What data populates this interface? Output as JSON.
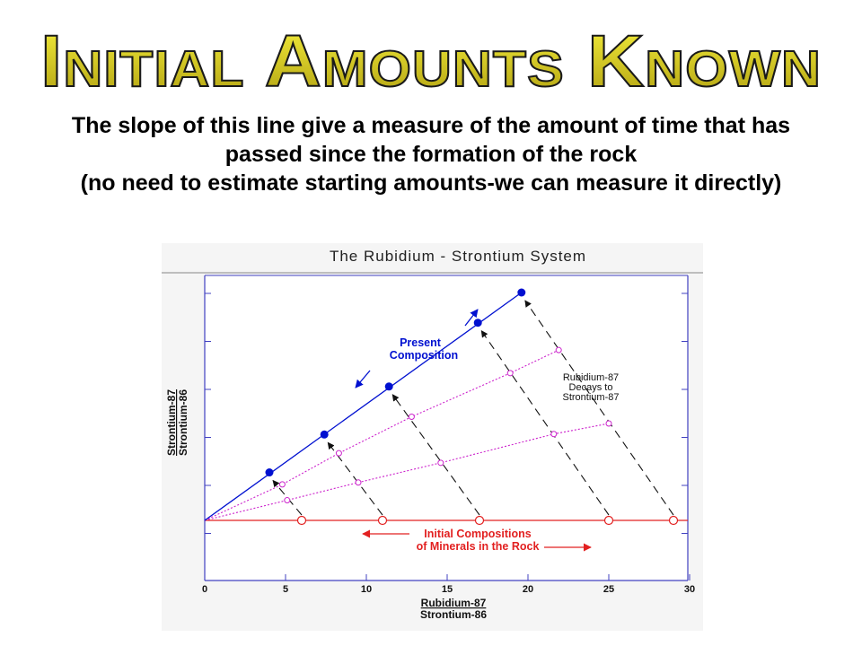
{
  "slide": {
    "title": "Initial Amounts Known",
    "subtitle_lines": [
      "The slope of this line give a measure of the amount of time that has",
      "passed since the formation of the rock",
      "(no need to estimate starting amounts-we can measure it directly)"
    ]
  },
  "colors": {
    "title_top": "#f5ef3c",
    "title_bottom": "#b0a011",
    "present_isochron": "#0010d0",
    "intermediate": "#cc22cc",
    "initial": "#e22020",
    "axis": "#4040c0",
    "dashed_arrows": "#111111"
  },
  "chart_data": {
    "type": "scatter",
    "title": "The Rubidium - Strontium System",
    "xlabel_numerator": "Rubidium-87",
    "xlabel_denominator": "Strontium-86",
    "ylabel_numerator": "Strontium-87",
    "ylabel_denominator": "Strontium-86",
    "x_ticks": [
      "0",
      "5",
      "10",
      "15",
      "20",
      "25",
      "30"
    ],
    "xlim": [
      0,
      30
    ],
    "ylim": [
      0,
      5
    ],
    "initial_y": 0,
    "origin": [
      0,
      0
    ],
    "series": [
      {
        "marker": "open-circle",
        "x": [
          6,
          11,
          17,
          25,
          29
        ],
        "y": [
          0,
          0,
          0,
          0,
          0
        ]
      },
      {
        "marker": "small-open-circle",
        "x": [
          5.1,
          9.5,
          14.6,
          21.6,
          25
        ],
        "y": [
          0.42,
          0.79,
          1.2,
          1.8,
          2.02
        ]
      },
      {
        "marker": "small-open-circle",
        "x": [
          4.8,
          8.3,
          12.8,
          18.9,
          21.9
        ],
        "y": [
          0.75,
          1.4,
          2.16,
          3.07,
          3.55
        ]
      },
      {
        "marker": "filled-circle",
        "x": [
          4,
          7.4,
          11.4,
          16.9,
          19.6
        ],
        "y": [
          1,
          1.79,
          2.79,
          4.12,
          4.75
        ]
      }
    ],
    "annotations": {
      "present": [
        "Present",
        "Composition"
      ],
      "decay": [
        "Rubidium-87",
        "Decays to",
        "Strontium-87"
      ],
      "initial": [
        "Initial Compositions",
        "of Minerals in the Rock"
      ]
    }
  }
}
